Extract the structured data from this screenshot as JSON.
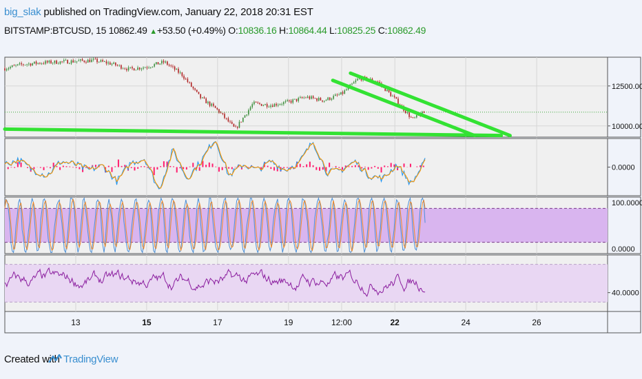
{
  "header": {
    "author": "big_slak",
    "published": " published on TradingView.com, January 22, 2018 20:31 EST",
    "symbol": "BITSTAMP:BTCUSD, 15",
    "last": "10862.49",
    "change": "+53.50 (+0.49%)",
    "o_label": "O:",
    "o_value": "10836.16",
    "h_label": "H:",
    "h_value": "10864.44",
    "l_label": "L:",
    "l_value": "10825.25",
    "c_label": "C:",
    "c_value": "10862.49"
  },
  "footer": {
    "created_with": "Created with",
    "brand": "TradingView"
  },
  "colors": {
    "background": "#f0f3fa",
    "pane": "#f0f0f0",
    "trendline": "#33e233",
    "macd_line": "#2196f3",
    "signal_line": "#ff9800",
    "histogram": "#ff1d6e",
    "stoch_band": "#d9b5ef",
    "rsi_band": "#e9d7f3",
    "rsi_line": "#8a1c9e",
    "link": "#3a8fd0"
  },
  "chart_data": [
    {
      "type": "line",
      "title": "BITSTAMP:BTCUSD, 15",
      "ylim": [
        9300,
        14300
      ],
      "y_ticks": [
        12500,
        10000
      ],
      "y_tick_labels": [
        "12500.00",
        "10000.00"
      ],
      "last_price": 10862.49,
      "x_ticks": [
        "13",
        "15",
        "17",
        "19",
        "12:00",
        "22",
        "24",
        "26"
      ],
      "bold_x_ticks": [
        "15",
        "22"
      ],
      "x_range": [
        "Jan 11 2018",
        "Jan 28 2018"
      ],
      "data_end": "Jan 22 2018 20:30",
      "price_path": [
        [
          "Jan 11 2018 00:00",
          13600
        ],
        [
          "Jan 11 2018 12:00",
          13850
        ],
        [
          "Jan 12 2018 00:00",
          13950
        ],
        [
          "Jan 12 2018 12:00",
          14000
        ],
        [
          "Jan 13 2018 00:00",
          14050
        ],
        [
          "Jan 13 2018 12:00",
          14100
        ],
        [
          "Jan 14 2018 00:00",
          13900
        ],
        [
          "Jan 14 2018 12:00",
          13550
        ],
        [
          "Jan 15 2018 00:00",
          13700
        ],
        [
          "Jan 15 2018 12:00",
          14000
        ],
        [
          "Jan 16 2018 00:00",
          13200
        ],
        [
          "Jan 16 2018 12:00",
          11800
        ],
        [
          "Jan 17 2018 00:00",
          11000
        ],
        [
          "Jan 17 2018 12:00",
          9800
        ],
        [
          "Jan 18 2018 00:00",
          11400
        ],
        [
          "Jan 18 2018 12:00",
          11300
        ],
        [
          "Jan 19 2018 00:00",
          11500
        ],
        [
          "Jan 19 2018 12:00",
          11800
        ],
        [
          "Jan 20 2018 00:00",
          11600
        ],
        [
          "Jan 20 2018 12:00",
          12000
        ],
        [
          "Jan 21 2018 00:00",
          13000
        ],
        [
          "Jan 21 2018 12:00",
          12800
        ],
        [
          "Jan 22 2018 00:00",
          11700
        ],
        [
          "Jan 22 2018 12:00",
          10400
        ],
        [
          "Jan 22 2018 20:30",
          10862
        ]
      ],
      "trendlines": [
        {
          "from": [
            "Jan 11 2018 00:00",
            9800
          ],
          "to": [
            "Jan 25 2018 00:00",
            9400
          ]
        },
        {
          "from": [
            "Jan 20 2018 06:00",
            12850
          ],
          "to": [
            "Jan 24 2018 06:00",
            9400
          ]
        },
        {
          "from": [
            "Jan 20 2018 18:00",
            13300
          ],
          "to": [
            "Jan 25 2018 06:00",
            9400
          ]
        }
      ]
    },
    {
      "type": "line",
      "title": "",
      "ylim": [
        -1,
        1
      ],
      "y_ticks": [
        0
      ],
      "y_tick_labels": [
        "0.0000"
      ],
      "series": [
        {
          "values": [
            0.1,
            0.25,
            -0.1,
            -0.3,
            0.2,
            0.1,
            -0.1,
            0.05,
            -0.5,
            0.15,
            0.3,
            -0.8,
            0.6,
            -0.4,
            0.2,
            1.0,
            -0.3,
            0.1,
            -0.1,
            0.2,
            -0.1,
            0.15,
            0.9,
            -0.2,
            -0.1,
            0.2,
            -0.3,
            -0.4,
            0.1,
            -0.6,
            0.2
          ]
        },
        {
          "values": [
            0.05,
            0.2,
            -0.05,
            -0.25,
            0.15,
            0.1,
            -0.05,
            0.05,
            -0.4,
            0.1,
            0.25,
            -0.7,
            0.5,
            -0.35,
            0.2,
            0.85,
            -0.25,
            0.1,
            -0.1,
            0.15,
            -0.05,
            0.1,
            0.8,
            -0.15,
            -0.1,
            0.15,
            -0.25,
            -0.35,
            0.1,
            -0.5,
            0.15
          ]
        }
      ]
    },
    {
      "type": "line",
      "title": "",
      "ylim": [
        0,
        100
      ],
      "y_ticks": [
        100,
        0
      ],
      "y_tick_labels": [
        "100.0000",
        "0.0000"
      ],
      "band": [
        20,
        80
      ]
    },
    {
      "type": "line",
      "title": "",
      "ylim": [
        20,
        80
      ],
      "y_ticks": [
        40
      ],
      "y_tick_labels": [
        "40.0000"
      ],
      "band": [
        30,
        70
      ],
      "rsi_range": [
        32,
        72
      ]
    }
  ]
}
